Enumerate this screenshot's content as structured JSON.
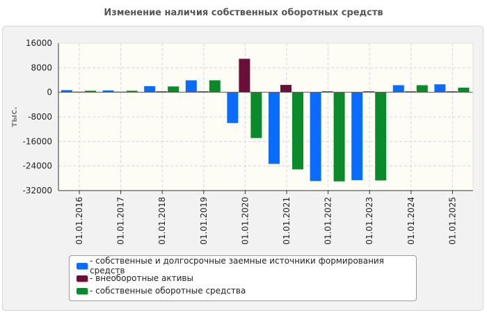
{
  "title": "Изменение наличия собственных оборотных средств",
  "chart_data": {
    "type": "bar",
    "title": "Изменение наличия собственных оборотных средств",
    "ylabel": "тыс.",
    "xlabel": "",
    "ylim": [
      -32000,
      16000
    ],
    "yticks": [
      16000,
      8000,
      0,
      -8000,
      -16000,
      -24000,
      -32000
    ],
    "grid": true,
    "legend_position": "bottom",
    "categories": [
      "01.01.2016",
      "01.01.2017",
      "01.01.2018",
      "01.01.2019",
      "01.01.2020",
      "01.01.2021",
      "01.01.2022",
      "01.01.2023",
      "01.01.2024",
      "01.01.2025"
    ],
    "series": [
      {
        "name": "- собственные и долгосрочные заемные источники формирования средств",
        "color": "#0a6cff",
        "values": [
          700,
          600,
          2000,
          3900,
          -10000,
          -23300,
          -28900,
          -28600,
          2300,
          2600
        ]
      },
      {
        "name": "- внеоборотные активы",
        "color": "#6b0f38",
        "values": [
          200,
          200,
          300,
          300,
          10900,
          2400,
          300,
          300,
          300,
          300
        ]
      },
      {
        "name": "- собственные оборотные средства",
        "color": "#0a8a2a",
        "values": [
          500,
          500,
          1900,
          3900,
          -14900,
          -25100,
          -29000,
          -28700,
          2300,
          1500
        ]
      }
    ]
  }
}
